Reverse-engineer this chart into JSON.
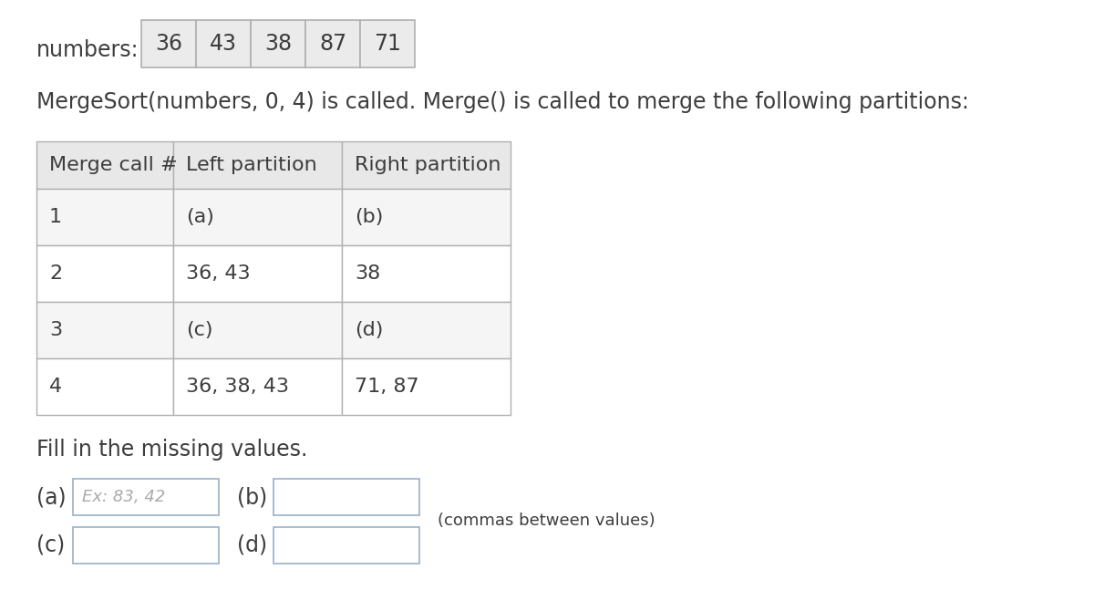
{
  "bg_color": "#ffffff",
  "text_color": "#3d3d3d",
  "numbers_label": "numbers:",
  "numbers": [
    "36",
    "43",
    "38",
    "87",
    "71"
  ],
  "description": "MergeSort(numbers, 0, 4) is called. Merge() is called to merge the following partitions:",
  "table_headers": [
    "Merge call #",
    "Left partition",
    "Right partition"
  ],
  "table_rows": [
    [
      "1",
      "(a)",
      "(b)"
    ],
    [
      "2",
      "36, 43",
      "38"
    ],
    [
      "3",
      "(c)",
      "(d)"
    ],
    [
      "4",
      "36, 38, 43",
      "71, 87"
    ]
  ],
  "fill_text": "Fill in the missing values.",
  "answer_labels_ab": [
    "(a)",
    "(b)"
  ],
  "answer_labels_cd": [
    "(c)",
    "(d)"
  ],
  "answer_a_placeholder": "Ex: 83, 42",
  "answer_note": "(commas between values)",
  "table_border_color": "#b0b0b0",
  "table_header_bg": "#e8e8e8",
  "table_row_bg_odd": "#f5f5f5",
  "table_row_bg_even": "#ffffff",
  "number_box_bg": "#ebebeb",
  "number_box_border": "#b0b0b0",
  "input_box_border": "#9ab0c8",
  "placeholder_color": "#aaaaaa",
  "font_size_main": 17,
  "font_size_table": 16,
  "font_size_small": 13
}
